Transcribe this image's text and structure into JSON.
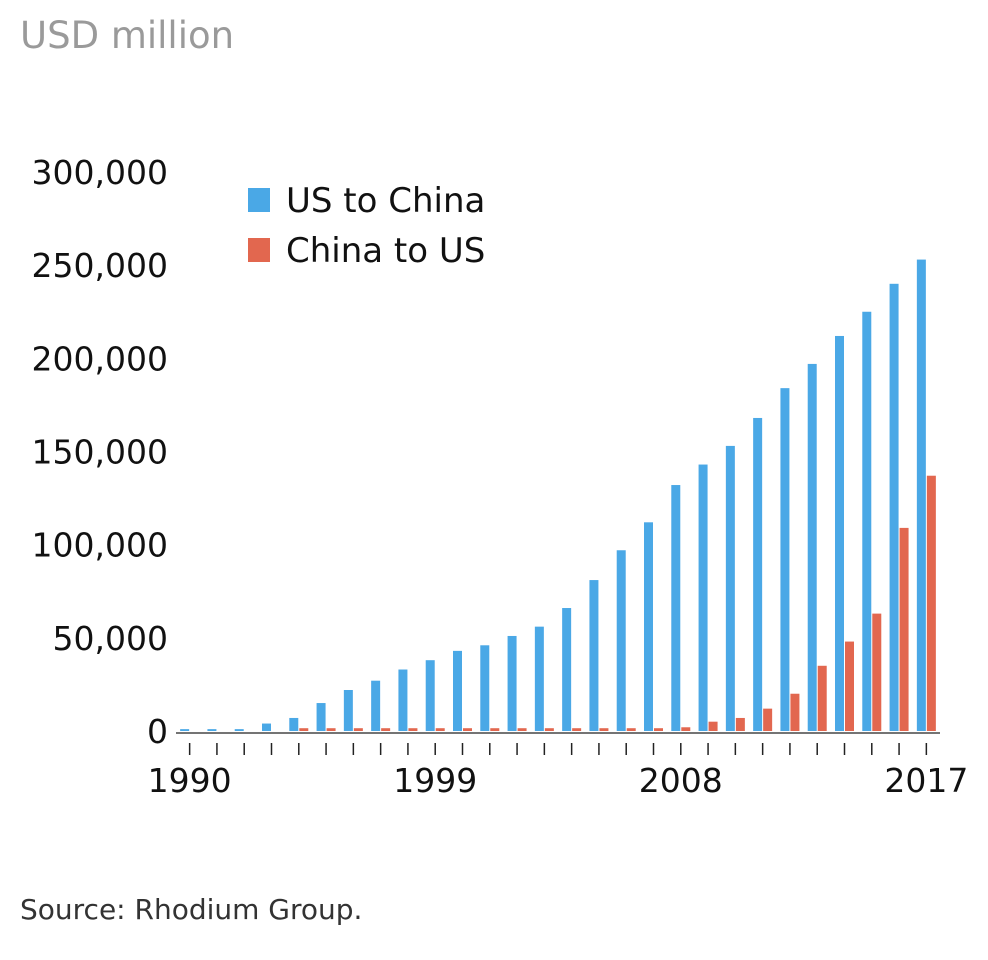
{
  "unit_label": "USD million",
  "source": "Source: Rhodium Group.",
  "colors": {
    "us_to_china": "#4aa8e6",
    "china_to_us": "#e2674f",
    "axis": "#222222"
  },
  "chart_data": {
    "type": "bar",
    "title": "",
    "xlabel": "",
    "ylabel": "USD million",
    "ylim": [
      0,
      300000
    ],
    "yticks": [
      0,
      50000,
      100000,
      150000,
      200000,
      250000,
      300000
    ],
    "ytick_labels": [
      "0",
      "50,000",
      "100,000",
      "150,000",
      "200,000",
      "250,000",
      "300,000"
    ],
    "x_labeled": [
      "1990",
      "1999",
      "2008",
      "2017"
    ],
    "categories": [
      "1990",
      "1991",
      "1992",
      "1993",
      "1994",
      "1995",
      "1996",
      "1997",
      "1998",
      "1999",
      "2000",
      "2001",
      "2002",
      "2003",
      "2004",
      "2005",
      "2006",
      "2007",
      "2008",
      "2009",
      "2010",
      "2011",
      "2012",
      "2013",
      "2014",
      "2015",
      "2016",
      "2017"
    ],
    "legend_position": "top-left",
    "grid": false,
    "series": [
      {
        "name": "US to China",
        "values": [
          1000,
          1000,
          1000,
          4000,
          7000,
          15000,
          22000,
          27000,
          33000,
          38000,
          43000,
          46000,
          51000,
          56000,
          66000,
          81000,
          97000,
          112000,
          132000,
          143000,
          153000,
          168000,
          184000,
          197000,
          212000,
          225000,
          240000,
          253000
        ]
      },
      {
        "name": "China to US",
        "values": [
          0,
          0,
          0,
          0,
          1500,
          1500,
          1500,
          1500,
          1500,
          1500,
          1500,
          1500,
          1500,
          1500,
          1500,
          1500,
          1500,
          1500,
          2000,
          5000,
          7000,
          12000,
          20000,
          35000,
          48000,
          63000,
          109000,
          137000
        ]
      }
    ]
  }
}
